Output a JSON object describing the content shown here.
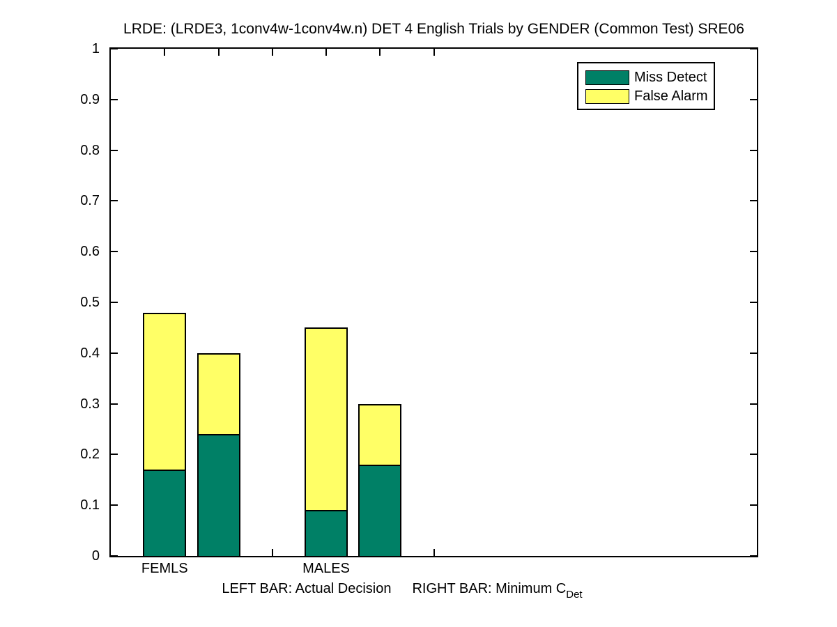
{
  "figure": {
    "background": "#ffffff",
    "axis_color": "#000000"
  },
  "chart_data": {
    "type": "bar",
    "stacked": true,
    "title": "LRDE: (LRDE3, 1conv4w-1conv4w.n) DET 4 English Trials by GENDER (Common Test) SRE06",
    "xlabel": "",
    "ylabel": "",
    "grid": false,
    "ylim": [
      0,
      1
    ],
    "yticks": [
      0,
      0.1,
      0.2,
      0.3,
      0.4,
      0.5,
      0.6,
      0.7,
      0.8,
      0.9,
      1
    ],
    "ytick_labels": [
      "0",
      "0.1",
      "0.2",
      "0.3",
      "0.4",
      "0.5",
      "0.6",
      "0.7",
      "0.8",
      "0.9",
      "1"
    ],
    "xlim": [
      0,
      12
    ],
    "xticks": [
      1,
      2,
      3,
      4,
      5,
      6
    ],
    "xcategories": [
      {
        "x": 1,
        "label": "FEMLS"
      },
      {
        "x": 4,
        "label": "MALES"
      }
    ],
    "bar_width": 0.8,
    "series": [
      {
        "name": "Miss Detect",
        "color": "#008066"
      },
      {
        "name": "False Alarm",
        "color": "#ffff66"
      }
    ],
    "bars": [
      {
        "group": "FEMLS",
        "kind": "Actual Decision",
        "x": 1,
        "miss_detect": 0.17,
        "false_alarm": 0.31,
        "total": 0.48
      },
      {
        "group": "FEMLS",
        "kind": "Minimum CDet",
        "x": 2,
        "miss_detect": 0.24,
        "false_alarm": 0.16,
        "total": 0.4
      },
      {
        "group": "MALES",
        "kind": "Actual Decision",
        "x": 4,
        "miss_detect": 0.09,
        "false_alarm": 0.36,
        "total": 0.45
      },
      {
        "group": "MALES",
        "kind": "Minimum CDet",
        "x": 5,
        "miss_detect": 0.18,
        "false_alarm": 0.12,
        "total": 0.3
      }
    ],
    "legend": {
      "position": "top-right",
      "entries": [
        {
          "label": "Miss Detect",
          "color": "#008066"
        },
        {
          "label": "False Alarm",
          "color": "#ffff66"
        }
      ]
    },
    "footnote": {
      "left": "LEFT BAR: Actual Decision",
      "right_main": "RIGHT BAR: Minimum C",
      "right_sub": "Det"
    }
  }
}
